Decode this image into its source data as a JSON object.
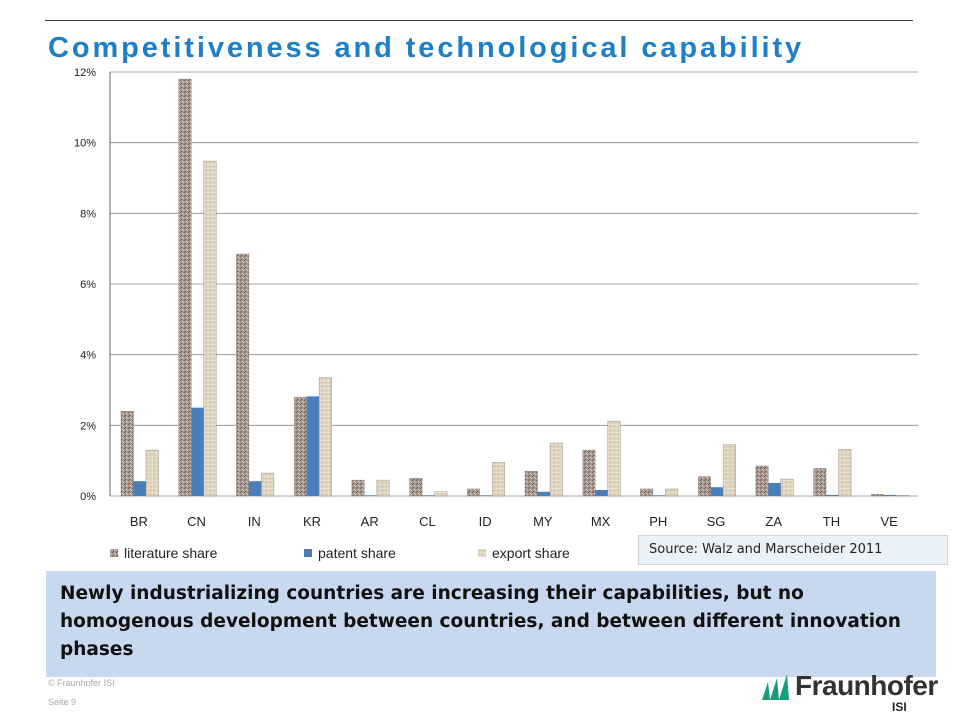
{
  "page": {
    "title": "Competitiveness and technological capability",
    "source": "Source: Walz and Marscheider 2011",
    "callout": "Newly industrializing countries are increasing their capabilities, but no homogenous development between countries, and between different innovation phases",
    "footer_copyright": "© Fraunhofer ISI",
    "footer_page": "Seite 9",
    "logo_name": "Fraunhofer",
    "logo_sub": "ISI"
  },
  "colors": {
    "title": "#1f7fc4",
    "literature": "#a89890",
    "patent": "#4a7ebb",
    "export": "#ddd3bf",
    "callout_bg": "#c8d8ee",
    "logo_green": "#179c7d"
  },
  "chart_data": {
    "type": "bar",
    "categories": [
      "BR",
      "CN",
      "IN",
      "KR",
      "AR",
      "CL",
      "ID",
      "MY",
      "MX",
      "PH",
      "SG",
      "ZA",
      "TH",
      "VE"
    ],
    "series": [
      {
        "name": "literature share",
        "values": [
          2.4,
          11.8,
          6.85,
          2.8,
          0.45,
          0.5,
          0.2,
          0.7,
          1.3,
          0.2,
          0.55,
          0.85,
          0.78,
          0.05
        ]
      },
      {
        "name": "patent share",
        "values": [
          0.42,
          2.5,
          0.42,
          2.82,
          0.02,
          0.02,
          0.02,
          0.12,
          0.17,
          0.02,
          0.25,
          0.37,
          0.03,
          0.03
        ]
      },
      {
        "name": "export share",
        "values": [
          1.3,
          9.48,
          0.65,
          3.35,
          0.45,
          0.12,
          0.95,
          1.5,
          2.12,
          0.2,
          1.45,
          0.48,
          1.32,
          0.02
        ]
      }
    ],
    "y_ticks": [
      "0%",
      "2%",
      "4%",
      "6%",
      "8%",
      "10%",
      "12%"
    ],
    "ylim": [
      0,
      12
    ],
    "y_unit": "%",
    "grid": true,
    "legend_position": "bottom-left"
  }
}
